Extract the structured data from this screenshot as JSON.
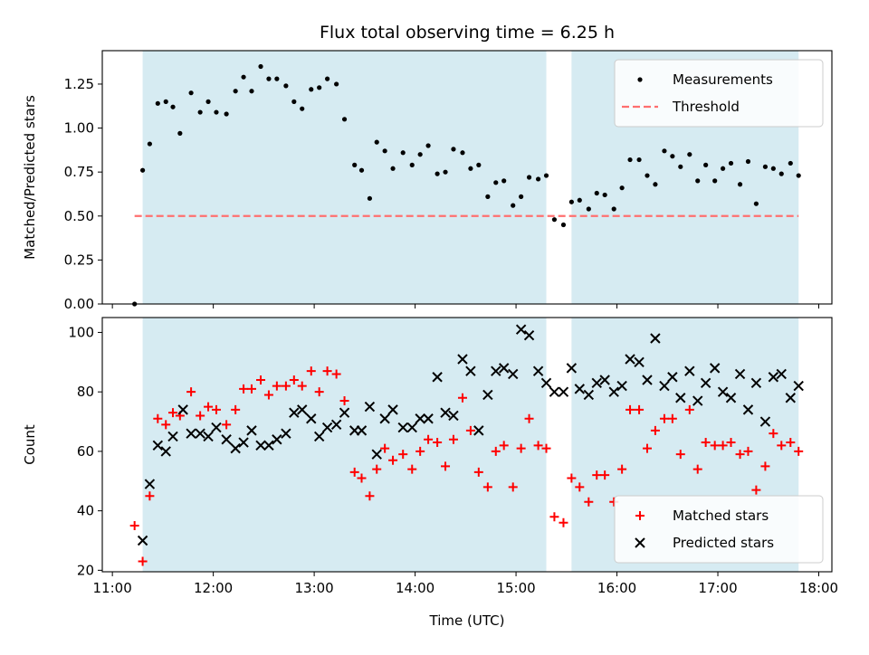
{
  "title": "Flux total observing time = 6.25 h",
  "colors": {
    "shade": "#add8e6",
    "threshold": "#ff6f6f",
    "matched": "#ff0000",
    "predicted": "#000000"
  },
  "chart_data": [
    {
      "type": "scatter",
      "id": "ratio",
      "ylabel": "Matched/Predicted stars",
      "xlabel": "",
      "xlim": [
        10.9,
        18.13
      ],
      "ylim": [
        0,
        1.44
      ],
      "xticks": [
        11,
        12,
        13,
        14,
        15,
        16,
        17,
        18
      ],
      "yticks": [
        0.0,
        0.25,
        0.5,
        0.75,
        1.0,
        1.25
      ],
      "ytick_labels": [
        "0.00",
        "0.25",
        "0.50",
        "0.75",
        "1.00",
        "1.25"
      ],
      "grid": false,
      "legend_position": "top-right",
      "shaded_spans": [
        [
          11.3,
          15.3
        ],
        [
          15.55,
          17.8
        ]
      ],
      "threshold": {
        "name": "Threshold",
        "y": 0.5,
        "x_range": [
          11.22,
          17.8
        ]
      },
      "series": [
        {
          "name": "Measurements",
          "marker": "dot",
          "x": [
            11.22,
            11.3,
            11.37,
            11.45,
            11.53,
            11.6,
            11.67,
            11.78,
            11.87,
            11.95,
            12.03,
            12.13,
            12.22,
            12.3,
            12.38,
            12.47,
            12.55,
            12.63,
            12.72,
            12.8,
            12.88,
            12.97,
            13.05,
            13.13,
            13.22,
            13.3,
            13.4,
            13.47,
            13.55,
            13.62,
            13.7,
            13.78,
            13.88,
            13.97,
            14.05,
            14.13,
            14.22,
            14.3,
            14.38,
            14.47,
            14.55,
            14.63,
            14.72,
            14.8,
            14.88,
            14.97,
            15.05,
            15.13,
            15.22,
            15.3,
            15.38,
            15.47,
            15.55,
            15.63,
            15.72,
            15.8,
            15.88,
            15.97,
            16.05,
            16.13,
            16.22,
            16.3,
            16.38,
            16.47,
            16.55,
            16.63,
            16.72,
            16.8,
            16.88,
            16.97,
            17.05,
            17.13,
            17.22,
            17.3,
            17.38,
            17.47,
            17.55,
            17.63,
            17.72,
            17.8
          ],
          "y": [
            0.0,
            0.76,
            0.91,
            1.14,
            1.15,
            1.12,
            0.97,
            1.2,
            1.09,
            1.15,
            1.09,
            1.08,
            1.21,
            1.29,
            1.21,
            1.35,
            1.28,
            1.28,
            1.24,
            1.15,
            1.11,
            1.22,
            1.23,
            1.28,
            1.25,
            1.05,
            0.79,
            0.76,
            0.6,
            0.92,
            0.87,
            0.77,
            0.86,
            0.79,
            0.85,
            0.9,
            0.74,
            0.75,
            0.88,
            0.86,
            0.77,
            0.79,
            0.61,
            0.69,
            0.7,
            0.56,
            0.61,
            0.72,
            0.71,
            0.73,
            0.48,
            0.45,
            0.58,
            0.59,
            0.54,
            0.63,
            0.62,
            0.54,
            0.66,
            0.82,
            0.82,
            0.73,
            0.68,
            0.87,
            0.84,
            0.78,
            0.85,
            0.7,
            0.79,
            0.7,
            0.77,
            0.8,
            0.68,
            0.81,
            0.57,
            0.78,
            0.77,
            0.74,
            0.8,
            0.73
          ]
        }
      ]
    },
    {
      "type": "scatter",
      "id": "counts",
      "ylabel": "Count",
      "xlabel": "Time (UTC)",
      "xlim": [
        10.9,
        18.13
      ],
      "ylim": [
        19.5,
        105
      ],
      "xticks": [
        11,
        12,
        13,
        14,
        15,
        16,
        17,
        18
      ],
      "xtick_labels": [
        "11:00",
        "12:00",
        "13:00",
        "14:00",
        "15:00",
        "16:00",
        "17:00",
        "18:00"
      ],
      "yticks": [
        20,
        40,
        60,
        80,
        100
      ],
      "ytick_labels": [
        "20",
        "40",
        "60",
        "80",
        "100"
      ],
      "grid": false,
      "legend_position": "bottom-right",
      "shaded_spans": [
        [
          11.3,
          15.3
        ],
        [
          15.55,
          17.8
        ]
      ],
      "series": [
        {
          "name": "Matched stars",
          "marker": "plus",
          "x": [
            11.22,
            11.3,
            11.37,
            11.45,
            11.53,
            11.6,
            11.67,
            11.78,
            11.87,
            11.95,
            12.03,
            12.13,
            12.22,
            12.3,
            12.38,
            12.47,
            12.55,
            12.63,
            12.72,
            12.8,
            12.88,
            12.97,
            13.05,
            13.13,
            13.22,
            13.3,
            13.4,
            13.47,
            13.55,
            13.62,
            13.7,
            13.78,
            13.88,
            13.97,
            14.05,
            14.13,
            14.22,
            14.3,
            14.38,
            14.47,
            14.55,
            14.63,
            14.72,
            14.8,
            14.88,
            14.97,
            15.05,
            15.13,
            15.22,
            15.3,
            15.38,
            15.47,
            15.55,
            15.63,
            15.72,
            15.8,
            15.88,
            15.97,
            16.05,
            16.13,
            16.22,
            16.3,
            16.38,
            16.47,
            16.55,
            16.63,
            16.72,
            16.8,
            16.88,
            16.97,
            17.05,
            17.13,
            17.22,
            17.3,
            17.38,
            17.47,
            17.55,
            17.63,
            17.72,
            17.8
          ],
          "y": [
            35,
            23,
            45,
            71,
            69,
            73,
            72,
            80,
            72,
            75,
            74,
            69,
            74,
            81,
            81,
            84,
            79,
            82,
            82,
            84,
            82,
            87,
            80,
            87,
            86,
            77,
            53,
            51,
            45,
            54,
            61,
            57,
            59,
            54,
            60,
            64,
            63,
            55,
            64,
            78,
            67,
            53,
            48,
            60,
            62,
            48,
            61,
            71,
            62,
            61,
            38,
            36,
            51,
            48,
            43,
            52,
            52,
            43,
            54,
            74,
            74,
            61,
            67,
            71,
            71,
            59,
            74,
            54,
            63,
            62,
            62,
            63,
            59,
            60,
            47,
            55,
            66,
            62,
            63,
            60
          ]
        },
        {
          "name": "Predicted stars",
          "marker": "x",
          "x": [
            11.3,
            11.37,
            11.45,
            11.53,
            11.6,
            11.7,
            11.78,
            11.87,
            11.95,
            12.03,
            12.13,
            12.22,
            12.3,
            12.38,
            12.47,
            12.55,
            12.63,
            12.72,
            12.8,
            12.88,
            12.97,
            13.05,
            13.13,
            13.22,
            13.3,
            13.4,
            13.47,
            13.55,
            13.62,
            13.7,
            13.78,
            13.88,
            13.97,
            14.05,
            14.13,
            14.22,
            14.3,
            14.38,
            14.47,
            14.55,
            14.63,
            14.72,
            14.8,
            14.88,
            14.97,
            15.05,
            15.13,
            15.22,
            15.3,
            15.38,
            15.47,
            15.55,
            15.63,
            15.72,
            15.8,
            15.88,
            15.97,
            16.05,
            16.13,
            16.22,
            16.3,
            16.38,
            16.47,
            16.55,
            16.63,
            16.72,
            16.8,
            16.88,
            16.97,
            17.05,
            17.13,
            17.22,
            17.3,
            17.38,
            17.47,
            17.55,
            17.63,
            17.72,
            17.8
          ],
          "y": [
            30,
            49,
            62,
            60,
            65,
            74,
            66,
            66,
            65,
            68,
            64,
            61,
            63,
            67,
            62,
            62,
            64,
            66,
            73,
            74,
            71,
            65,
            68,
            69,
            73,
            67,
            67,
            75,
            59,
            71,
            74,
            68,
            68,
            71,
            71,
            85,
            73,
            72,
            91,
            87,
            67,
            79,
            87,
            88,
            86,
            101,
            99,
            87,
            83,
            80,
            80,
            88,
            81,
            79,
            83,
            84,
            80,
            82,
            91,
            90,
            84,
            98,
            82,
            85,
            78,
            87,
            77,
            83,
            88,
            80,
            78,
            86,
            74,
            83,
            70,
            85,
            86,
            78,
            82
          ]
        }
      ]
    }
  ]
}
